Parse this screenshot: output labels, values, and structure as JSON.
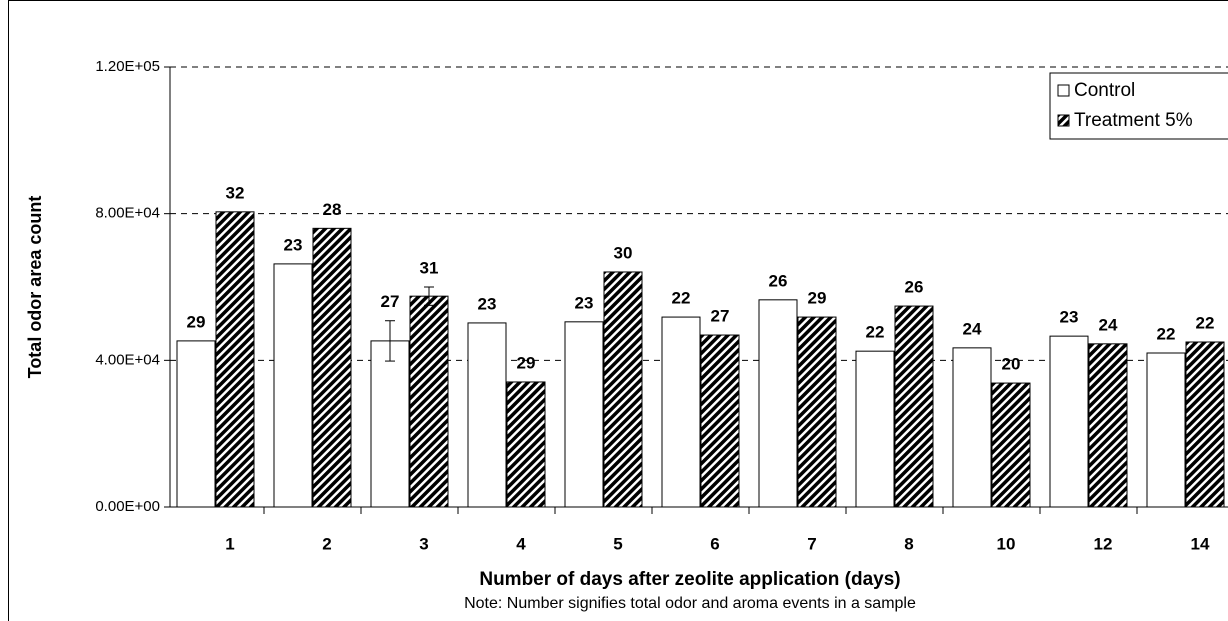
{
  "chart_data": {
    "type": "bar",
    "x_label": "Number of days after zeolite application (days)",
    "y_label": "Total odor area count",
    "note": "Note:  Number signifies total odor and aroma events in a sample",
    "categories": [
      "1",
      "2",
      "3",
      "4",
      "5",
      "6",
      "7",
      "8",
      "10",
      "12",
      "14"
    ],
    "series": [
      {
        "name": "Control",
        "color": "#ffffff",
        "values": [
          45300,
          66300,
          45300,
          50200,
          50500,
          51800,
          56500,
          42500,
          43400,
          46600,
          42000
        ],
        "errors": [
          null,
          null,
          5500,
          null,
          null,
          null,
          null,
          null,
          null,
          null,
          null
        ],
        "event_counts": [
          29,
          23,
          27,
          23,
          23,
          22,
          26,
          22,
          24,
          23,
          22
        ]
      },
      {
        "name": "Treatment 5%",
        "color": "hatched",
        "values": [
          80500,
          76000,
          57500,
          34100,
          64100,
          46900,
          51800,
          54800,
          33800,
          44500,
          45000
        ],
        "errors": [
          null,
          null,
          2500,
          null,
          null,
          null,
          null,
          null,
          null,
          null,
          null
        ],
        "event_counts": [
          32,
          28,
          31,
          29,
          30,
          27,
          29,
          26,
          20,
          24,
          22
        ]
      }
    ],
    "ylim": [
      0,
      120000
    ],
    "yticks": [
      {
        "value": 0,
        "label": "0.00E+00"
      },
      {
        "value": 40000,
        "label": "4.00E+04"
      },
      {
        "value": 80000,
        "label": "8.00E+04"
      },
      {
        "value": 120000,
        "label": "1.20E+05"
      }
    ],
    "grid": true,
    "legend": "upper right"
  }
}
